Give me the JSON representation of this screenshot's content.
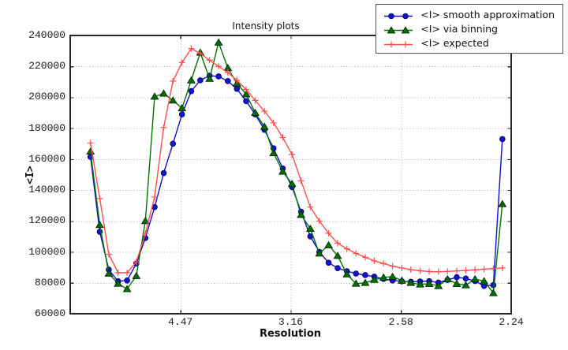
{
  "figure": {
    "background": "#ffffff"
  },
  "chart_data": {
    "type": "line",
    "title": "Intensity plots",
    "xlabel": "Resolution",
    "ylabel": "<I>",
    "grid": true,
    "legend_position": "upper-right-outside",
    "x_axis": {
      "unit": "1/d^2, tick labels show resolution d in Angstrom",
      "range": [
        0,
        0.2
      ],
      "ticks": [
        {
          "value": 0.05,
          "label": "4.47"
        },
        {
          "value": 0.1,
          "label": "3.16"
        },
        {
          "value": 0.15,
          "label": "2.58"
        },
        {
          "value": 0.2,
          "label": "2.24"
        }
      ]
    },
    "y_axis": {
      "range": [
        60000,
        240000
      ],
      "ticks": [
        {
          "value": 60000,
          "label": "60000"
        },
        {
          "value": 80000,
          "label": "80000"
        },
        {
          "value": 100000,
          "label": "100000"
        },
        {
          "value": 120000,
          "label": "120000"
        },
        {
          "value": 140000,
          "label": "140000"
        },
        {
          "value": 160000,
          "label": "160000"
        },
        {
          "value": 180000,
          "label": "180000"
        },
        {
          "value": 200000,
          "label": "200000"
        },
        {
          "value": 220000,
          "label": "220000"
        },
        {
          "value": 240000,
          "label": "240000"
        }
      ]
    },
    "x": [
      0.0092,
      0.0134,
      0.0175,
      0.0217,
      0.0258,
      0.03,
      0.0341,
      0.0383,
      0.0424,
      0.0466,
      0.0507,
      0.0549,
      0.059,
      0.0632,
      0.0673,
      0.0715,
      0.0756,
      0.0798,
      0.0839,
      0.0881,
      0.0922,
      0.0964,
      0.1006,
      0.1047,
      0.1089,
      0.113,
      0.1172,
      0.1213,
      0.1255,
      0.1296,
      0.1338,
      0.1379,
      0.1421,
      0.1462,
      0.1504,
      0.1545,
      0.1587,
      0.1628,
      0.167,
      0.1711,
      0.1753,
      0.1794,
      0.1836,
      0.1877,
      0.1919,
      0.196
    ],
    "series": [
      {
        "name": "<I> smooth approximation",
        "marker": "circle",
        "color": "#0f0fd0",
        "marker_fill": "#1414cc",
        "marker_edge": "#000066",
        "values": [
          161500,
          113000,
          88500,
          81000,
          81500,
          92500,
          109000,
          129000,
          151000,
          170000,
          189000,
          204000,
          211000,
          214000,
          213500,
          210500,
          205500,
          197500,
          189000,
          179000,
          167000,
          154000,
          142000,
          126000,
          110000,
          100000,
          93000,
          89500,
          87500,
          86000,
          85000,
          84000,
          82500,
          81500,
          81000,
          80700,
          80900,
          81100,
          80200,
          81900,
          83600,
          82800,
          81100,
          78000,
          78500,
          173000
        ]
      },
      {
        "name": "<I> via binning",
        "marker": "triangle",
        "color": "#007300",
        "marker_fill": "#006f00",
        "marker_edge": "#001f00",
        "values": [
          165000,
          117500,
          86000,
          79500,
          76000,
          84500,
          120000,
          200500,
          202500,
          198000,
          193000,
          211000,
          229000,
          212000,
          235500,
          219000,
          209000,
          202000,
          190000,
          181000,
          164000,
          152000,
          144000,
          124000,
          115000,
          99000,
          104400,
          97500,
          85500,
          79500,
          80000,
          82000,
          83500,
          84000,
          81500,
          80000,
          79000,
          79400,
          78000,
          82400,
          79400,
          78500,
          82400,
          81100,
          73400,
          131000
        ]
      },
      {
        "name": "<I> expected",
        "marker": "plus",
        "color": "#ff4d4d",
        "marker_fill": "#ff4d4d",
        "marker_edge": "#ff4d4d",
        "values": [
          170500,
          134500,
          98500,
          86500,
          86500,
          93500,
          112000,
          135500,
          180500,
          210500,
          222500,
          231500,
          228500,
          224000,
          220000,
          216000,
          211000,
          205000,
          198000,
          191000,
          183500,
          174000,
          163000,
          146000,
          129000,
          120000,
          112000,
          105600,
          102000,
          99000,
          96500,
          94200,
          92500,
          90800,
          89600,
          88500,
          87800,
          87300,
          87200,
          87400,
          87700,
          88000,
          88400,
          88800,
          89200,
          89600
        ]
      }
    ],
    "style": {
      "grid_color": "#b0b0b0",
      "spine_color": "#262626",
      "tick_text_color": "#1a1a1a"
    }
  }
}
